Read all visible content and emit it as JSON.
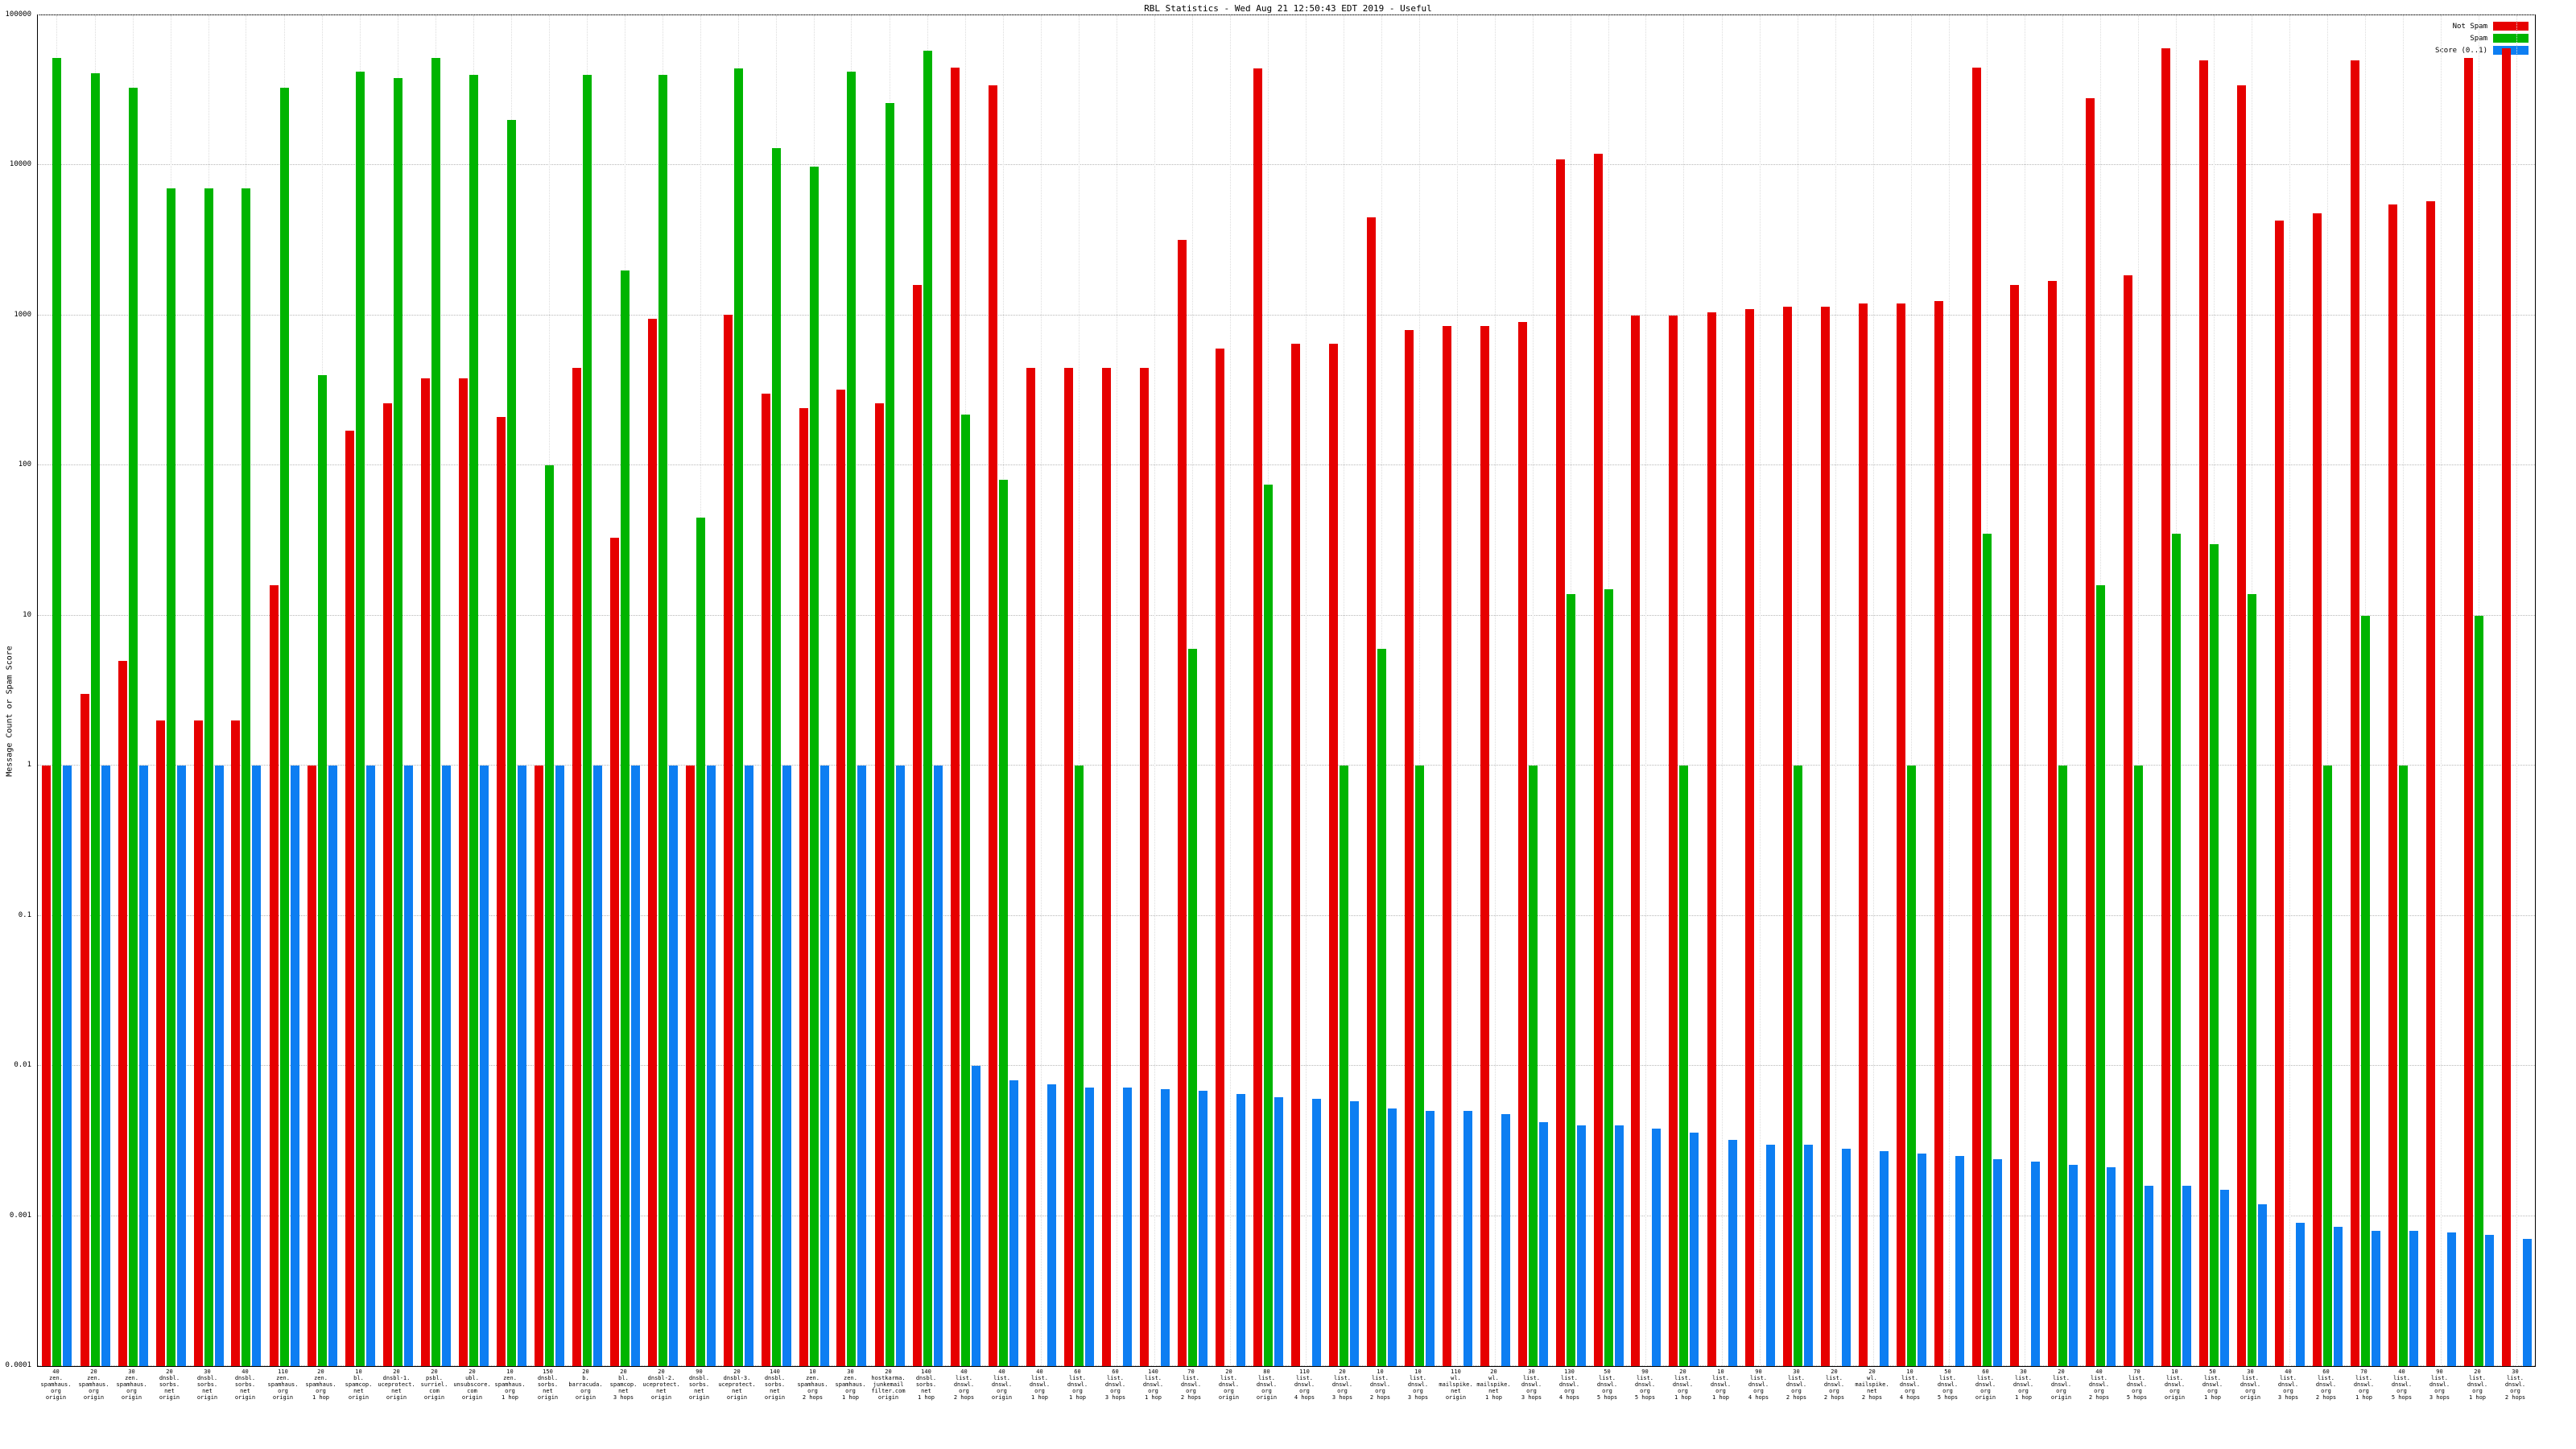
{
  "title": "RBL Statistics - Wed Aug 21 12:50:43 EDT 2019 - Useful",
  "ylabel": "Message Count or Spam Score",
  "legend": [
    {
      "label": "Not Spam",
      "color": "#e60000"
    },
    {
      "label": "Spam",
      "color": "#00b400"
    },
    {
      "label": "Score (0..1)",
      "color": "#0d7ef2"
    }
  ],
  "chart_data": {
    "type": "bar",
    "yscale": "log",
    "grid": true,
    "legend_position": "top-right",
    "ylim": [
      0.0001,
      100000
    ],
    "yticks": [
      {
        "label": "100000",
        "value": 100000
      },
      {
        "label": "10000",
        "value": 10000
      },
      {
        "label": "1000",
        "value": 1000
      },
      {
        "label": "100",
        "value": 100
      },
      {
        "label": "10",
        "value": 10
      },
      {
        "label": "1",
        "value": 1
      },
      {
        "label": "0.1",
        "value": 0.1
      },
      {
        "label": "0.01",
        "value": 0.01
      },
      {
        "label": "0.001",
        "value": 0.001
      },
      {
        "label": "0.0001",
        "value": 0.0001
      }
    ],
    "series": [
      "Not Spam",
      "Spam",
      "Score (0..1)"
    ],
    "colors": [
      "#e60000",
      "#00b400",
      "#0d7ef2"
    ],
    "groups": [
      {
        "label": [
          "40",
          "zen.",
          "spamhaus.",
          "org",
          "origin"
        ],
        "values": [
          1,
          52000,
          1
        ]
      },
      {
        "label": [
          "20",
          "zen.",
          "spamhaus.",
          "org",
          "origin"
        ],
        "values": [
          3,
          41000,
          1
        ]
      },
      {
        "label": [
          "30",
          "zen.",
          "spamhaus.",
          "org",
          "origin"
        ],
        "values": [
          5,
          33000,
          1
        ]
      },
      {
        "label": [
          "20",
          "dnsbl.",
          "sorbs.",
          "net",
          "origin"
        ],
        "values": [
          2,
          7000,
          1
        ]
      },
      {
        "label": [
          "30",
          "dnsbl.",
          "sorbs.",
          "net",
          "origin"
        ],
        "values": [
          2,
          7000,
          1
        ]
      },
      {
        "label": [
          "40",
          "dnsbl.",
          "sorbs.",
          "net",
          "origin"
        ],
        "values": [
          2,
          7000,
          1
        ]
      },
      {
        "label": [
          "110",
          "zen.",
          "spamhaus.",
          "org",
          "origin"
        ],
        "values": [
          16,
          33000,
          1
        ]
      },
      {
        "label": [
          "20",
          "zen.",
          "spamhaus.",
          "org",
          "1 hop"
        ],
        "values": [
          1,
          400,
          1
        ]
      },
      {
        "label": [
          "10",
          "bl.",
          "spamcop.",
          "net",
          "origin"
        ],
        "values": [
          170,
          42000,
          1
        ]
      },
      {
        "label": [
          "20",
          "dnsbl-1.",
          "uceprotect.",
          "net",
          "origin"
        ],
        "values": [
          260,
          38000,
          1
        ]
      },
      {
        "label": [
          "20",
          "psbl.",
          "surriel.",
          "com",
          "origin"
        ],
        "values": [
          380,
          52000,
          1
        ]
      },
      {
        "label": [
          "20",
          "ubl.",
          "unsubscore.",
          "com",
          "origin"
        ],
        "values": [
          380,
          40000,
          1
        ]
      },
      {
        "label": [
          "10",
          "zen.",
          "spamhaus.",
          "org",
          "1 hop"
        ],
        "values": [
          210,
          20000,
          1
        ]
      },
      {
        "label": [
          "150",
          "dnsbl.",
          "sorbs.",
          "net",
          "origin"
        ],
        "values": [
          1,
          100,
          1
        ]
      },
      {
        "label": [
          "20",
          "b.",
          "barracuda.",
          "org",
          "origin"
        ],
        "values": [
          450,
          40000,
          1
        ]
      },
      {
        "label": [
          "20",
          "bl.",
          "spamcop.",
          "net",
          "3 hops"
        ],
        "values": [
          33,
          2000,
          1
        ]
      },
      {
        "label": [
          "20",
          "dnsbl-2.",
          "uceprotect.",
          "net",
          "origin"
        ],
        "values": [
          950,
          40000,
          1
        ]
      },
      {
        "label": [
          "90",
          "dnsbl.",
          "sorbs.",
          "net",
          "origin"
        ],
        "values": [
          1,
          45,
          1
        ]
      },
      {
        "label": [
          "20",
          "dnsbl-3.",
          "uceprotect.",
          "net",
          "origin"
        ],
        "values": [
          1010,
          44000,
          1
        ]
      },
      {
        "label": [
          "140",
          "dnsbl.",
          "sorbs.",
          "net",
          "origin"
        ],
        "values": [
          300,
          13000,
          1
        ]
      },
      {
        "label": [
          "10",
          "zen.",
          "spamhaus.",
          "org",
          "2 hops"
        ],
        "values": [
          240,
          9800,
          1
        ]
      },
      {
        "label": [
          "30",
          "zen.",
          "spamhaus.",
          "org",
          "1 hop"
        ],
        "values": [
          320,
          42000,
          1
        ]
      },
      {
        "label": [
          "20",
          "hostkarma.",
          "junkemail",
          "filter.com",
          "origin"
        ],
        "values": [
          260,
          26000,
          1
        ]
      },
      {
        "label": [
          "140",
          "dnsbl.",
          "sorbs.",
          "net",
          "1 hop"
        ],
        "values": [
          1600,
          58000,
          1
        ]
      },
      {
        "label": [
          "40",
          "list.",
          "dnswl.",
          "org",
          "2 hops"
        ],
        "values": [
          45000,
          220,
          0.01
        ]
      },
      {
        "label": [
          "40",
          "list.",
          "dnswl.",
          "org",
          "origin"
        ],
        "values": [
          34000,
          80,
          0.008
        ]
      },
      {
        "label": [
          "40",
          "list.",
          "dnswl.",
          "org",
          "1 hop"
        ],
        "values": [
          450,
          0,
          0.0075
        ]
      },
      {
        "label": [
          "60",
          "list.",
          "dnswl.",
          "org",
          "1 hop"
        ],
        "values": [
          450,
          1,
          0.0072
        ]
      },
      {
        "label": [
          "60",
          "list.",
          "dnswl.",
          "org",
          "3 hops"
        ],
        "values": [
          450,
          0,
          0.0072
        ]
      },
      {
        "label": [
          "140",
          "list.",
          "dnswl.",
          "org",
          "1 hop"
        ],
        "values": [
          450,
          0,
          0.007
        ]
      },
      {
        "label": [
          "70",
          "list.",
          "dnswl.",
          "org",
          "2 hops"
        ],
        "values": [
          3200,
          6,
          0.0068
        ]
      },
      {
        "label": [
          "20",
          "list.",
          "dnswl.",
          "org",
          "origin"
        ],
        "values": [
          600,
          0,
          0.0065
        ]
      },
      {
        "label": [
          "80",
          "list.",
          "dnswl.",
          "org",
          "origin"
        ],
        "values": [
          44000,
          75,
          0.0062
        ]
      },
      {
        "label": [
          "110",
          "list.",
          "dnswl.",
          "org",
          "4 hops"
        ],
        "values": [
          650,
          0,
          0.006
        ]
      },
      {
        "label": [
          "20",
          "list.",
          "dnswl.",
          "org",
          "3 hops"
        ],
        "values": [
          650,
          1,
          0.0058
        ]
      },
      {
        "label": [
          "10",
          "list.",
          "dnswl.",
          "org",
          "2 hops"
        ],
        "values": [
          4500,
          6,
          0.0052
        ]
      },
      {
        "label": [
          "10",
          "list.",
          "dnswl.",
          "org",
          "3 hops"
        ],
        "values": [
          800,
          1,
          0.005
        ]
      },
      {
        "label": [
          "110",
          "wl.",
          "mailspike.",
          "net",
          "origin"
        ],
        "values": [
          850,
          0,
          0.005
        ]
      },
      {
        "label": [
          "20",
          "wl.",
          "mailspike.",
          "net",
          "1 hop"
        ],
        "values": [
          850,
          0,
          0.0048
        ]
      },
      {
        "label": [
          "30",
          "list.",
          "dnswl.",
          "org",
          "3 hops"
        ],
        "values": [
          900,
          1,
          0.0042
        ]
      },
      {
        "label": [
          "130",
          "list.",
          "dnswl.",
          "org",
          "4 hops"
        ],
        "values": [
          11000,
          14,
          0.004
        ]
      },
      {
        "label": [
          "50",
          "list.",
          "dnswl.",
          "org",
          "5 hops"
        ],
        "values": [
          12000,
          15,
          0.004
        ]
      },
      {
        "label": [
          "90",
          "list.",
          "dnswl.",
          "org",
          "5 hops"
        ],
        "values": [
          1000,
          0,
          0.0038
        ]
      },
      {
        "label": [
          "20",
          "list.",
          "dnswl.",
          "org",
          "1 hop"
        ],
        "values": [
          1000,
          1,
          0.0036
        ]
      },
      {
        "label": [
          "10",
          "list.",
          "dnswl.",
          "org",
          "1 hop"
        ],
        "values": [
          1050,
          0,
          0.0032
        ]
      },
      {
        "label": [
          "90",
          "list.",
          "dnswl.",
          "org",
          "4 hops"
        ],
        "values": [
          1100,
          0,
          0.003
        ]
      },
      {
        "label": [
          "30",
          "list.",
          "dnswl.",
          "org",
          "2 hops"
        ],
        "values": [
          1150,
          1,
          0.003
        ]
      },
      {
        "label": [
          "20",
          "list.",
          "dnswl.",
          "org",
          "2 hops"
        ],
        "values": [
          1150,
          0,
          0.0028
        ]
      },
      {
        "label": [
          "20",
          "wl.",
          "mailspike.",
          "net",
          "2 hops"
        ],
        "values": [
          1200,
          0,
          0.0027
        ]
      },
      {
        "label": [
          "10",
          "list.",
          "dnswl.",
          "org",
          "4 hops"
        ],
        "values": [
          1200,
          1,
          0.0026
        ]
      },
      {
        "label": [
          "50",
          "list.",
          "dnswl.",
          "org",
          "5 hops"
        ],
        "values": [
          1250,
          0,
          0.0025
        ]
      },
      {
        "label": [
          "60",
          "list.",
          "dnswl.",
          "org",
          "origin"
        ],
        "values": [
          45000,
          35,
          0.0024
        ]
      },
      {
        "label": [
          "30",
          "list.",
          "dnswl.",
          "org",
          "1 hop"
        ],
        "values": [
          1600,
          0,
          0.0023
        ]
      },
      {
        "label": [
          "20",
          "list.",
          "dnswl.",
          "org",
          "origin"
        ],
        "values": [
          1700,
          1,
          0.0022
        ]
      },
      {
        "label": [
          "40",
          "list.",
          "dnswl.",
          "org",
          "2 hops"
        ],
        "values": [
          28000,
          16,
          0.0021
        ]
      },
      {
        "label": [
          "70",
          "list.",
          "dnswl.",
          "org",
          "5 hops"
        ],
        "values": [
          1850,
          1,
          0.0016
        ]
      },
      {
        "label": [
          "10",
          "list.",
          "dnswl.",
          "org",
          "origin"
        ],
        "values": [
          60000,
          35,
          0.0016
        ]
      },
      {
        "label": [
          "50",
          "list.",
          "dnswl.",
          "org",
          "1 hop"
        ],
        "values": [
          50000,
          30,
          0.0015
        ]
      },
      {
        "label": [
          "30",
          "list.",
          "dnswl.",
          "org",
          "origin"
        ],
        "values": [
          34000,
          14,
          0.0012
        ]
      },
      {
        "label": [
          "40",
          "list.",
          "dnswl.",
          "org",
          "3 hops"
        ],
        "values": [
          4300,
          0,
          0.0009
        ]
      },
      {
        "label": [
          "60",
          "list.",
          "dnswl.",
          "org",
          "2 hops"
        ],
        "values": [
          4800,
          1,
          0.00085
        ]
      },
      {
        "label": [
          "70",
          "list.",
          "dnswl.",
          "org",
          "1 hop"
        ],
        "values": [
          50000,
          10,
          0.0008
        ]
      },
      {
        "label": [
          "40",
          "list.",
          "dnswl.",
          "org",
          "5 hops"
        ],
        "values": [
          5500,
          1,
          0.0008
        ]
      },
      {
        "label": [
          "90",
          "list.",
          "dnswl.",
          "org",
          "3 hops"
        ],
        "values": [
          5800,
          0,
          0.00078
        ]
      },
      {
        "label": [
          "20",
          "list.",
          "dnswl.",
          "org",
          "1 hop"
        ],
        "values": [
          52000,
          10,
          0.00075
        ]
      },
      {
        "label": [
          "30",
          "list.",
          "dnswl.",
          "org",
          "2 hops"
        ],
        "values": [
          60000,
          0,
          0.0007
        ]
      }
    ]
  }
}
